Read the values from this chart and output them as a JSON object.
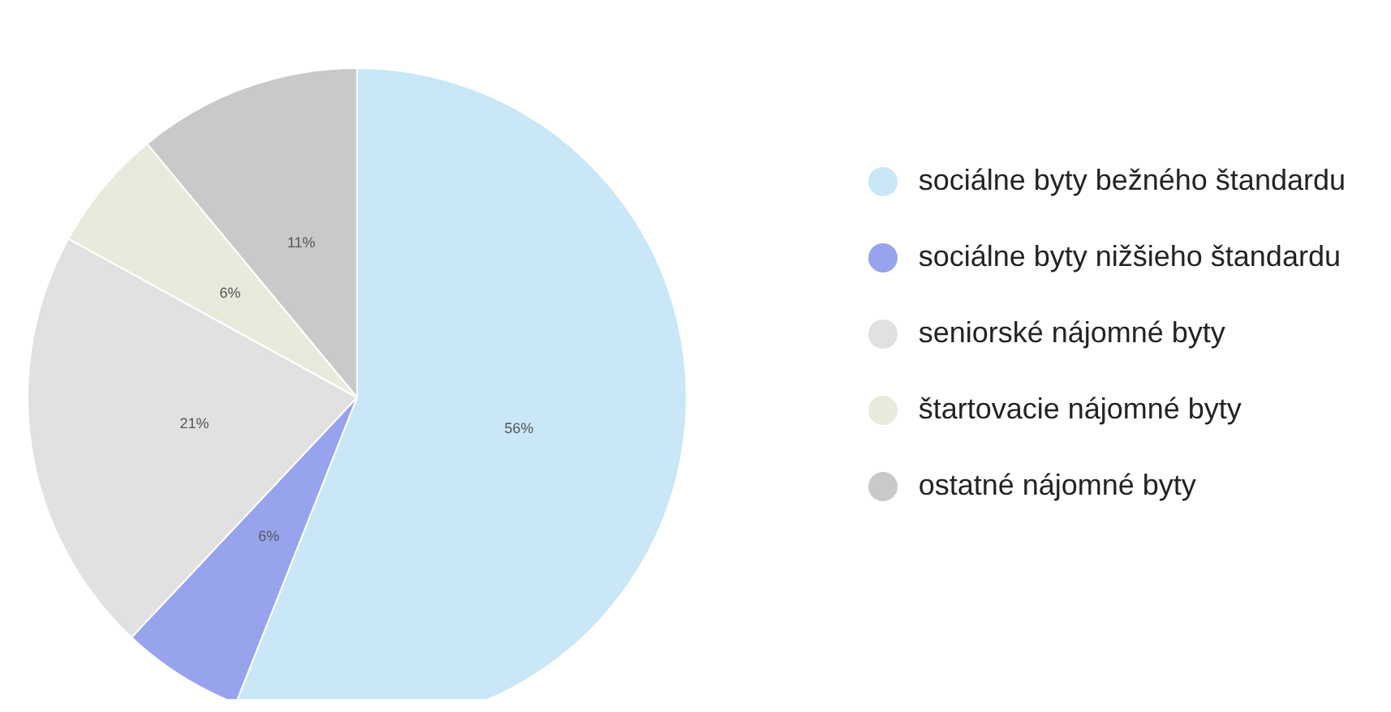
{
  "chart_data": {
    "type": "pie",
    "categories": [
      "sociálne byty bežného štandardu",
      "sociálne byty nižšieho štandardu",
      "seniorské nájomné byty",
      "štartovacie nájomné byty",
      "ostatné nájomné byty"
    ],
    "values": [
      56,
      6,
      21,
      6,
      11
    ],
    "colors": [
      "#c9e7f6",
      "#98a3ee",
      "#e1e1e1",
      "#e9e9dc",
      "#c9c9c9"
    ],
    "value_labels": [
      "56%",
      "6%",
      "21%",
      "6%",
      "11%"
    ],
    "legend": "right"
  }
}
